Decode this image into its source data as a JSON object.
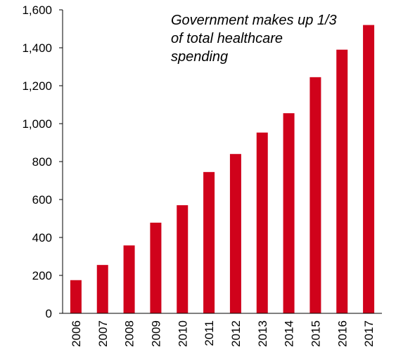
{
  "chart_data": {
    "type": "bar",
    "categories": [
      "2006",
      "2007",
      "2008",
      "2009",
      "2010",
      "2011",
      "2012",
      "2013",
      "2014",
      "2015",
      "2016",
      "2017"
    ],
    "values": [
      175,
      255,
      358,
      478,
      570,
      745,
      840,
      953,
      1055,
      1245,
      1390,
      1520
    ],
    "ylim": [
      0,
      1600
    ],
    "yticks": [
      0,
      200,
      400,
      600,
      800,
      1000,
      1200,
      1400,
      1600
    ],
    "ytick_labels": [
      "0",
      "200",
      "400",
      "600",
      "800",
      "1,000",
      "1,200",
      "1,400",
      "1,600"
    ],
    "annotation_lines": [
      "Government makes up 1/3",
      "of total healthcare",
      "spending"
    ],
    "bar_color": "#d0021b",
    "grid": false,
    "title": "",
    "xlabel": "",
    "ylabel": ""
  }
}
